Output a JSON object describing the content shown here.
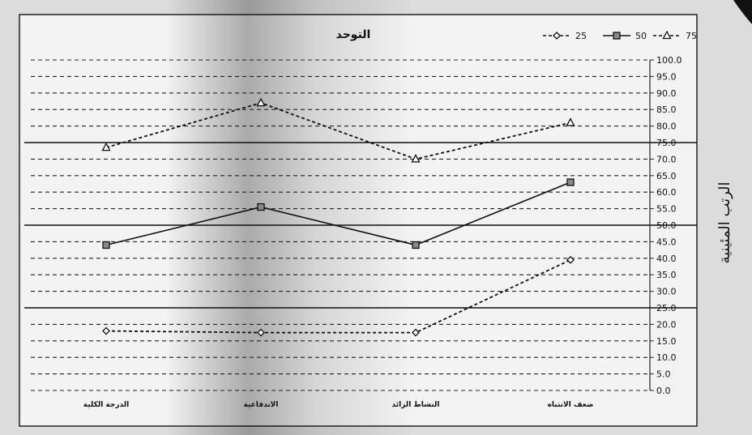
{
  "chart_data": {
    "type": "line",
    "title": "التوحد",
    "ylabel": "الرتب المئينية",
    "xlabel": "",
    "categories": [
      "الدرجة الكلية",
      "الاندفاعية",
      "النشاط الزائد",
      "ضعف الانتباه"
    ],
    "ylim": [
      0,
      100
    ],
    "yticks": [
      "100.0",
      "95.0",
      "90.0",
      "85.0",
      "80.0",
      "75.0",
      "70.0",
      "65.0",
      "60.0",
      "55.0",
      "50.0",
      "45.0",
      "40.0",
      "35.0",
      "30.0",
      "25.0",
      "20.0",
      "15.0",
      "10.0",
      "5.0",
      "0.0"
    ],
    "series": [
      {
        "name": "25",
        "values": [
          18,
          17.5,
          17.5,
          39.5
        ],
        "color": "#111111",
        "dash": "dashed",
        "marker": "diamond"
      },
      {
        "name": "50",
        "values": [
          44,
          55.5,
          44,
          63
        ],
        "color": "#111111",
        "dash": "solid",
        "marker": "square"
      },
      {
        "name": "75",
        "values": [
          73.5,
          87,
          70,
          81
        ],
        "color": "#111111",
        "dash": "dashed",
        "marker": "triangle"
      }
    ],
    "reference_lines": [
      75,
      50,
      25
    ],
    "grid": true,
    "grid_style": "dashed",
    "legend_placement": "top-right"
  }
}
